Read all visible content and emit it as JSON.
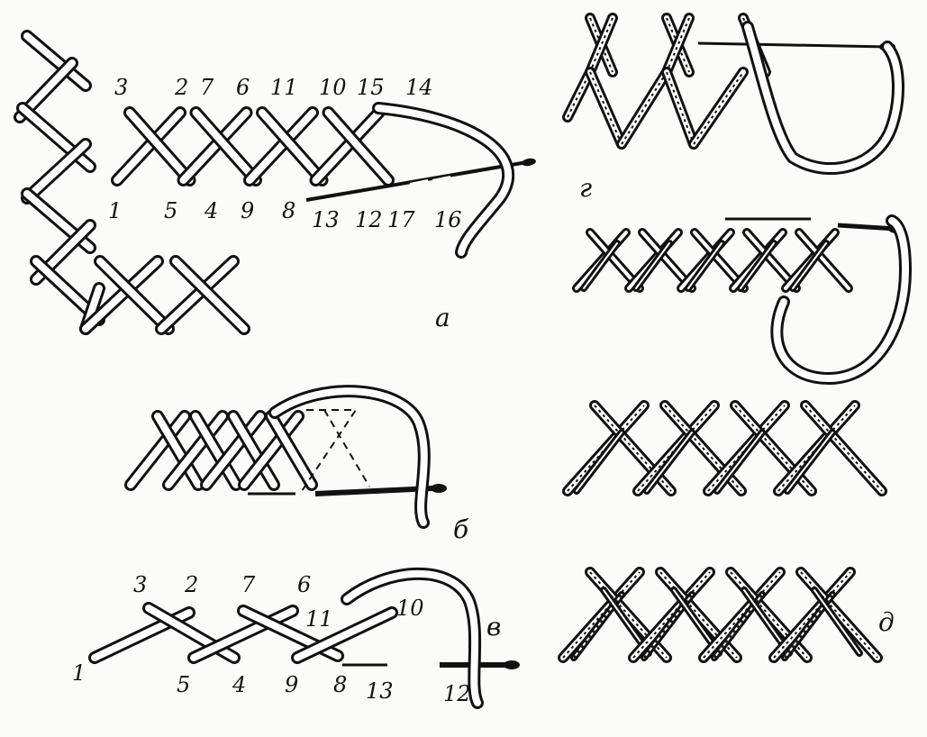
{
  "panels": {
    "a": {
      "letter": "а",
      "numbers": [
        "3",
        "2",
        "7",
        "6",
        "11",
        "10",
        "15",
        "14",
        "1",
        "5",
        "4",
        "9",
        "8",
        "13",
        "12",
        "17",
        "16"
      ]
    },
    "b": {
      "letter": "б"
    },
    "v": {
      "letter": "в",
      "numbers": [
        "3",
        "2",
        "7",
        "6",
        "11",
        "10",
        "1",
        "5",
        "4",
        "9",
        "8",
        "13",
        "12"
      ]
    },
    "g": {
      "letter": "г"
    },
    "d": {
      "letter": "д"
    }
  },
  "colors": {
    "ink": "#111111",
    "paper": "#fbfbf9",
    "thread_fill": "#ffffff"
  }
}
